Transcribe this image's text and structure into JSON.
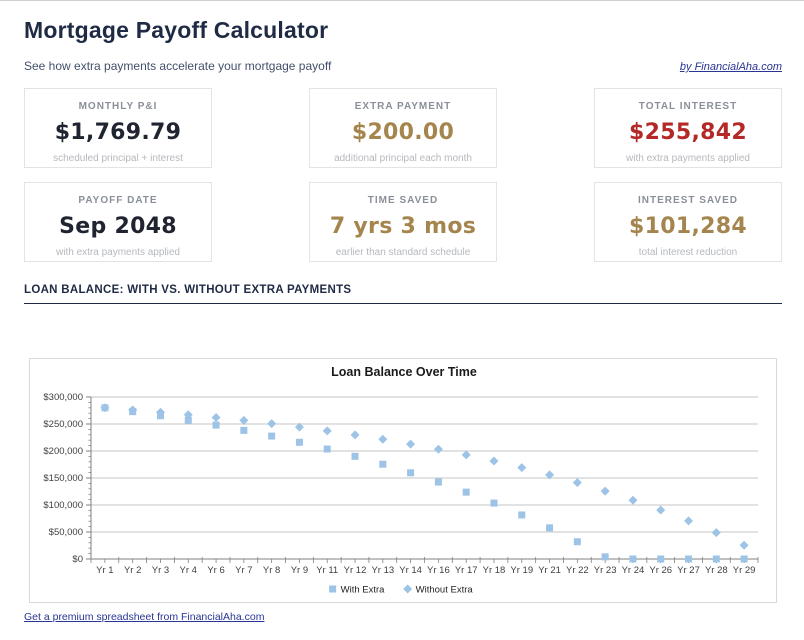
{
  "header": {
    "title": "Mortgage Payoff Calculator",
    "subtitle": "See how extra payments accelerate your mortgage payoff",
    "byline": "by FinancialAha.com"
  },
  "cards": [
    {
      "label": "MONTHLY P&I",
      "value": "$1,769.79",
      "caption": "scheduled principal + interest",
      "tone": "dark"
    },
    {
      "label": "EXTRA PAYMENT",
      "value": "$200.00",
      "caption": "additional principal each month",
      "tone": "gold"
    },
    {
      "label": "TOTAL INTEREST",
      "value": "$255,842",
      "caption": "with extra payments applied",
      "tone": "red"
    },
    {
      "label": "PAYOFF DATE",
      "value": "Sep 2048",
      "caption": "with extra payments applied",
      "tone": "dark"
    },
    {
      "label": "TIME SAVED",
      "value": "7 yrs 3 mos",
      "caption": "earlier than standard schedule",
      "tone": "gold"
    },
    {
      "label": "INTEREST SAVED",
      "value": "$101,284",
      "caption": "total interest reduction",
      "tone": "gold"
    }
  ],
  "section": {
    "heading": "LOAN BALANCE: WITH VS. WITHOUT EXTRA PAYMENTS"
  },
  "chart_data": {
    "type": "scatter",
    "title": "Loan Balance Over Time",
    "xlabel": "",
    "ylabel": "",
    "grid": true,
    "legend_position": "bottom",
    "ylim": [
      0,
      300000
    ],
    "y_minor_step": 10000,
    "y_ticks": [
      {
        "value": 300000,
        "label": "$300,000"
      },
      {
        "value": 250000,
        "label": "$250,000"
      },
      {
        "value": 200000,
        "label": "$200,000"
      },
      {
        "value": 150000,
        "label": "$150,000"
      },
      {
        "value": 100000,
        "label": "$100,000"
      },
      {
        "value": 50000,
        "label": "$50,000"
      },
      {
        "value": 0,
        "label": "$0"
      }
    ],
    "categories": [
      "Yr 1",
      "Yr 2",
      "Yr 3",
      "Yr 4",
      "Yr 6",
      "Yr 7",
      "Yr 8",
      "Yr 9",
      "Yr 11",
      "Yr 12",
      "Yr 13",
      "Yr 14",
      "Yr 16",
      "Yr 17",
      "Yr 18",
      "Yr 19",
      "Yr 21",
      "Yr 22",
      "Yr 23",
      "Yr 24",
      "Yr 26",
      "Yr 27",
      "Yr 28",
      "Yr 29"
    ],
    "series": [
      {
        "name": "With Extra",
        "marker": "square",
        "values": [
          280000,
          272939,
          265283,
          256979,
          247976,
          238211,
          227623,
          216141,
          203691,
          190189,
          175549,
          159671,
          142454,
          123787,
          103542,
          81586,
          57777,
          31960,
          3962,
          0,
          0,
          0,
          0,
          0
        ]
      },
      {
        "name": "Without Extra",
        "marker": "diamond",
        "values": [
          280000,
          276056,
          271779,
          267140,
          262110,
          256656,
          250742,
          244328,
          237373,
          229831,
          221652,
          212783,
          203165,
          192735,
          181426,
          169161,
          155862,
          141440,
          125810,
          108851,
          90451,
          70507,
          48881,
          25430
        ]
      }
    ]
  },
  "footer": {
    "link": "Get a premium spreadsheet from FinancialAha.com"
  },
  "colors": {
    "navy": "#1f2a44",
    "link": "#283593",
    "gold": "#a5854e",
    "red": "#b42828",
    "dark": "#1f2430",
    "marker_blue": "#9dc3e6"
  }
}
